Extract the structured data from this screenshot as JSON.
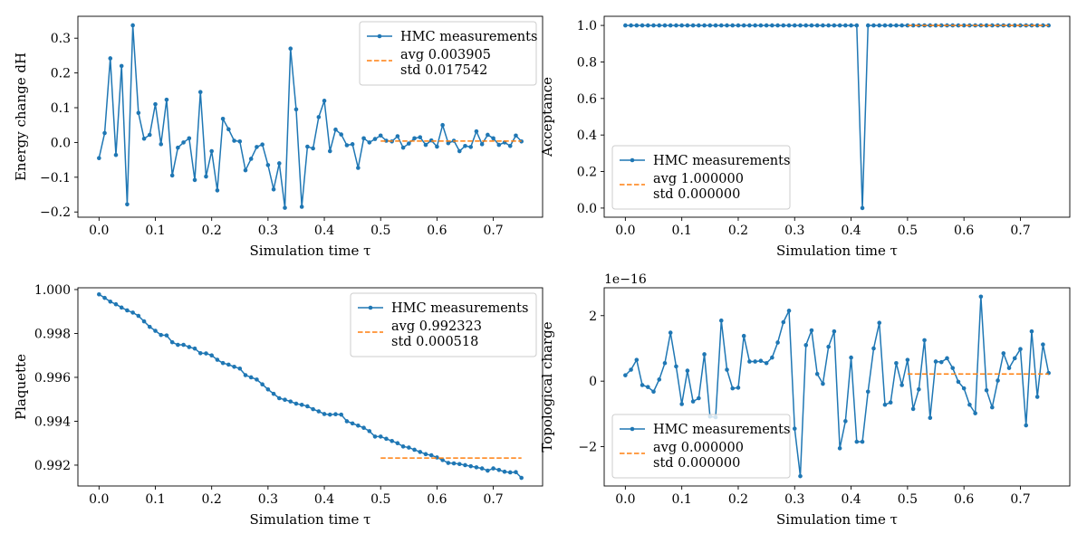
{
  "chart_data": [
    {
      "type": "line",
      "xlabel": "Simulation time τ",
      "ylabel": "Energy change dH",
      "ylim": [
        -0.215,
        0.363
      ],
      "xlim": [
        -0.0375,
        0.7875
      ],
      "xticks": [
        0.0,
        0.1,
        0.2,
        0.3,
        0.4,
        0.5,
        0.6,
        0.7
      ],
      "xtick_labels": [
        "0.0",
        "0.1",
        "0.2",
        "0.3",
        "0.4",
        "0.5",
        "0.6",
        "0.7"
      ],
      "yticks": [
        -0.2,
        -0.1,
        0.0,
        0.1,
        0.2,
        0.3
      ],
      "ytick_labels": [
        "−0.2",
        "−0.1",
        "0.0",
        "0.1",
        "0.2",
        "0.3"
      ],
      "legend_position": "upper-right",
      "series": [
        {
          "name": "HMC measurements",
          "color": "#1f77b4",
          "x_start": 0.0,
          "x_step": 0.01,
          "values": [
            -0.045,
            0.027,
            0.242,
            -0.036,
            0.22,
            -0.178,
            0.337,
            0.085,
            0.011,
            0.022,
            0.11,
            -0.005,
            0.123,
            -0.095,
            -0.015,
            0.0,
            0.012,
            -0.108,
            0.145,
            -0.098,
            -0.025,
            -0.138,
            0.068,
            0.038,
            0.005,
            0.003,
            -0.08,
            -0.047,
            -0.013,
            -0.006,
            -0.065,
            -0.135,
            -0.06,
            -0.188,
            0.27,
            0.095,
            -0.185,
            -0.012,
            -0.017,
            0.073,
            0.12,
            -0.025,
            0.037,
            0.023,
            -0.008,
            -0.005,
            -0.073,
            0.012,
            0.0,
            0.01,
            0.02,
            0.005,
            0.003,
            0.018,
            -0.015,
            -0.003,
            0.012,
            0.015,
            -0.007,
            0.006,
            -0.012,
            0.05,
            -0.002,
            0.005,
            -0.025,
            -0.01,
            -0.013,
            0.032,
            -0.005,
            0.022,
            0.012,
            -0.007,
            0.0,
            -0.01,
            0.02,
            0.003
          ]
        }
      ],
      "average": {
        "value": 0.003905,
        "x_from": 0.5,
        "x_to": 0.75,
        "color": "#ff7f0e"
      },
      "legend": [
        "HMC measurements",
        "avg 0.003905",
        "std 0.017542"
      ]
    },
    {
      "type": "line",
      "xlabel": "Simulation time τ",
      "ylabel": "Acceptance",
      "ylim": [
        -0.05,
        1.05
      ],
      "xlim": [
        -0.0375,
        0.7875
      ],
      "xticks": [
        0.0,
        0.1,
        0.2,
        0.3,
        0.4,
        0.5,
        0.6,
        0.7
      ],
      "xtick_labels": [
        "0.0",
        "0.1",
        "0.2",
        "0.3",
        "0.4",
        "0.5",
        "0.6",
        "0.7"
      ],
      "yticks": [
        0.0,
        0.2,
        0.4,
        0.6,
        0.8,
        1.0
      ],
      "ytick_labels": [
        "0.0",
        "0.2",
        "0.4",
        "0.6",
        "0.8",
        "1.0"
      ],
      "legend_position": "lower-left",
      "series": [
        {
          "name": "HMC measurements",
          "color": "#1f77b4",
          "x_start": 0.0,
          "x_step": 0.01,
          "values": [
            1,
            1,
            1,
            1,
            1,
            1,
            1,
            1,
            1,
            1,
            1,
            1,
            1,
            1,
            1,
            1,
            1,
            1,
            1,
            1,
            1,
            1,
            1,
            1,
            1,
            1,
            1,
            1,
            1,
            1,
            1,
            1,
            1,
            1,
            1,
            1,
            1,
            1,
            1,
            1,
            1,
            1,
            0,
            1,
            1,
            1,
            1,
            1,
            1,
            1,
            1,
            1,
            1,
            1,
            1,
            1,
            1,
            1,
            1,
            1,
            1,
            1,
            1,
            1,
            1,
            1,
            1,
            1,
            1,
            1,
            1,
            1,
            1,
            1,
            1,
            1
          ]
        }
      ],
      "average": {
        "value": 1.0,
        "x_from": 0.5,
        "x_to": 0.75,
        "color": "#ff7f0e"
      },
      "legend": [
        "HMC measurements",
        "avg 1.000000",
        "std 0.000000"
      ]
    },
    {
      "type": "line",
      "xlabel": "Simulation time τ",
      "ylabel": "Plaquette",
      "ylim": [
        0.99105,
        1.00008
      ],
      "xlim": [
        -0.0375,
        0.7875
      ],
      "xticks": [
        0.0,
        0.1,
        0.2,
        0.3,
        0.4,
        0.5,
        0.6,
        0.7
      ],
      "xtick_labels": [
        "0.0",
        "0.1",
        "0.2",
        "0.3",
        "0.4",
        "0.5",
        "0.6",
        "0.7"
      ],
      "yticks": [
        0.992,
        0.994,
        0.996,
        0.998,
        1.0
      ],
      "ytick_labels": [
        "0.992",
        "0.994",
        "0.996",
        "0.998",
        "1.000"
      ],
      "legend_position": "upper-right",
      "series": [
        {
          "name": "HMC measurements",
          "color": "#1f77b4",
          "x_start": 0.0,
          "x_step": 0.01,
          "values": [
            0.99978,
            0.99962,
            0.99945,
            0.99933,
            0.99918,
            0.99905,
            0.99895,
            0.9988,
            0.99855,
            0.9983,
            0.99812,
            0.99793,
            0.99791,
            0.9976,
            0.99748,
            0.99748,
            0.99738,
            0.99731,
            0.9971,
            0.99709,
            0.997,
            0.9968,
            0.99665,
            0.99658,
            0.99648,
            0.9964,
            0.9961,
            0.996,
            0.9959,
            0.99568,
            0.99545,
            0.99525,
            0.99505,
            0.99498,
            0.9949,
            0.9948,
            0.99475,
            0.99468,
            0.99455,
            0.99445,
            0.99433,
            0.9943,
            0.99432,
            0.9943,
            0.994,
            0.9939,
            0.9938,
            0.9937,
            0.99355,
            0.9933,
            0.9933,
            0.9932,
            0.9931,
            0.993,
            0.99285,
            0.9928,
            0.9927,
            0.9926,
            0.9925,
            0.99245,
            0.99235,
            0.99223,
            0.9921,
            0.99208,
            0.99205,
            0.992,
            0.99195,
            0.9919,
            0.99185,
            0.99175,
            0.99185,
            0.99178,
            0.9917,
            0.99167,
            0.99168,
            0.99142
          ]
        }
      ],
      "average": {
        "value": 0.992323,
        "x_from": 0.5,
        "x_to": 0.75,
        "color": "#ff7f0e"
      },
      "legend": [
        "HMC measurements",
        "avg 0.992323",
        "std 0.000518"
      ]
    },
    {
      "type": "line",
      "xlabel": "Simulation time τ",
      "ylabel": "Topological charge",
      "offset_label": "1e−16",
      "ylim": [
        -3.2,
        2.85
      ],
      "xlim": [
        -0.0375,
        0.7875
      ],
      "xticks": [
        0.0,
        0.1,
        0.2,
        0.3,
        0.4,
        0.5,
        0.6,
        0.7
      ],
      "xtick_labels": [
        "0.0",
        "0.1",
        "0.2",
        "0.3",
        "0.4",
        "0.5",
        "0.6",
        "0.7"
      ],
      "yticks": [
        -2,
        0,
        2
      ],
      "ytick_labels": [
        "−2",
        "0",
        "2"
      ],
      "legend_position": "lower-left",
      "series": [
        {
          "name": "HMC measurements",
          "color": "#1f77b4",
          "x_start": 0.0,
          "x_step": 0.01,
          "values": [
            0.18,
            0.35,
            0.65,
            -0.12,
            -0.18,
            -0.32,
            0.05,
            0.55,
            1.48,
            0.45,
            -0.7,
            0.32,
            -0.62,
            -0.52,
            0.82,
            -1.08,
            -1.1,
            1.85,
            0.35,
            -0.22,
            -0.2,
            1.38,
            0.6,
            0.6,
            0.62,
            0.55,
            0.72,
            1.18,
            1.8,
            2.15,
            -1.45,
            -2.9,
            1.1,
            1.55,
            0.22,
            -0.08,
            1.05,
            1.52,
            -2.05,
            -1.22,
            0.72,
            -1.85,
            -1.85,
            -0.32,
            1.0,
            1.78,
            -0.72,
            -0.65,
            0.55,
            -0.12,
            0.65,
            -0.85,
            -0.25,
            1.25,
            -1.12,
            0.6,
            0.58,
            0.7,
            0.4,
            -0.02,
            -0.22,
            -0.72,
            -0.98,
            2.58,
            -0.28,
            -0.8,
            0.02,
            0.85,
            0.4,
            0.7,
            0.98,
            -1.35,
            1.52,
            -0.48,
            1.12,
            0.25
          ]
        }
      ],
      "average": {
        "value": 0.22,
        "x_from": 0.5,
        "x_to": 0.75,
        "color": "#ff7f0e"
      },
      "legend": [
        "HMC measurements",
        "avg 0.000000",
        "std 0.000000"
      ]
    }
  ]
}
